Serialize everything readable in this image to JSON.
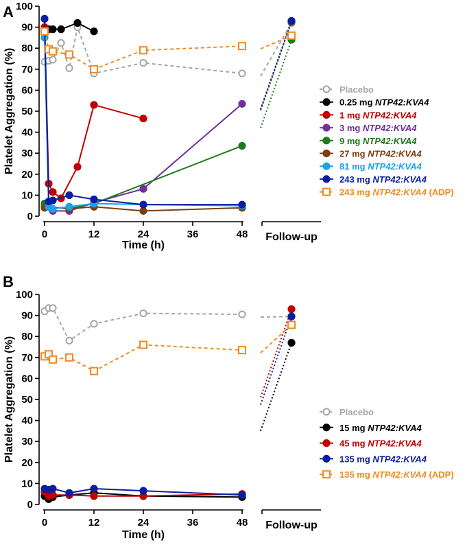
{
  "figure": {
    "followup_label": "Follow-up"
  },
  "chart_data": [
    {
      "type": "line",
      "panel": "A",
      "xlabel": "Time (h)",
      "ylabel": "Platelet Aggregation (%)",
      "xlim": [
        0,
        48
      ],
      "ylim": [
        0,
        100
      ],
      "xticks": [
        0,
        12,
        24,
        36,
        48
      ],
      "yticks": [
        0,
        10,
        20,
        30,
        40,
        50,
        60,
        70,
        80,
        90,
        100
      ],
      "legend_position": "right",
      "series": [
        {
          "key": "placebo",
          "name": "Placebo",
          "name_parts": [
            "Placebo"
          ],
          "color": "#a6a6a6",
          "dashed": true,
          "hollow": true,
          "marker": "circle",
          "x": [
            0,
            1,
            2,
            4,
            6,
            8,
            12,
            24,
            48
          ],
          "y": [
            73.5,
            74,
            74.5,
            82.5,
            70.5,
            90,
            68,
            73,
            68
          ],
          "followup": 92
        },
        {
          "key": "d025",
          "name": "0.25 mg NTP42:KVA4",
          "name_parts": [
            "0.25 mg ",
            "NTP42:KVA4"
          ],
          "color": "#000000",
          "dashed": false,
          "hollow": false,
          "marker": "circle",
          "x": [
            0,
            1,
            2,
            4,
            8,
            12
          ],
          "y": [
            89,
            89,
            89,
            89,
            92,
            88
          ],
          "followup": 92.5
        },
        {
          "key": "d1",
          "name": "1 mg NTP42:KVA4",
          "name_parts": [
            "1 mg ",
            "NTP42:KVA4"
          ],
          "color": "#c00000",
          "dashed": false,
          "hollow": false,
          "marker": "circle",
          "x": [
            0,
            1,
            2,
            4,
            8,
            12,
            24
          ],
          "y": [
            90,
            15.5,
            11.5,
            8.5,
            23.5,
            53,
            46.5
          ],
          "followup": null
        },
        {
          "key": "d3",
          "name": "3 mg NTP42:KVA4",
          "name_parts": [
            "3 mg ",
            "NTP42:KVA4"
          ],
          "color": "#7030a0",
          "dashed": false,
          "hollow": false,
          "marker": "circle",
          "x": [
            0,
            2,
            6,
            12,
            24,
            48
          ],
          "y": [
            5,
            2.5,
            2.5,
            6.5,
            13,
            53.5
          ],
          "followup": null
        },
        {
          "key": "d9",
          "name": "9 mg NTP42:KVA4",
          "name_parts": [
            "9 mg ",
            "NTP42:KVA4"
          ],
          "color": "#1e7a1e",
          "dashed": false,
          "hollow": false,
          "marker": "circle",
          "x": [
            0,
            1,
            6,
            12,
            48
          ],
          "y": [
            6,
            4.5,
            3.5,
            6,
            33.5
          ],
          "followup": 84
        },
        {
          "key": "d27",
          "name": "27 mg NTP42:KVA4",
          "name_parts": [
            "27 mg ",
            "NTP42:KVA4"
          ],
          "color": "#7b3f10",
          "dashed": false,
          "hollow": false,
          "marker": "circle",
          "x": [
            0,
            1,
            6,
            12,
            24,
            48
          ],
          "y": [
            4,
            4.5,
            3.5,
            4.5,
            2.5,
            4
          ],
          "followup": 92.5
        },
        {
          "key": "d81",
          "name": "81 mg NTP42:KVA4",
          "name_parts": [
            "81 mg ",
            "NTP42:KVA4"
          ],
          "color": "#1aa3e8",
          "dashed": false,
          "hollow": false,
          "marker": "circle",
          "x": [
            0,
            1,
            2,
            6,
            12,
            24,
            48
          ],
          "y": [
            85,
            4.5,
            3.5,
            4.5,
            6,
            5.5,
            5
          ],
          "followup": 93
        },
        {
          "key": "d243",
          "name": "243 mg NTP42:KVA4",
          "name_parts": [
            "243 mg ",
            "NTP42:KVA4"
          ],
          "color": "#0b1ea0",
          "dashed": false,
          "hollow": false,
          "marker": "circle",
          "x": [
            0,
            1,
            2,
            6,
            12,
            24,
            48
          ],
          "y": [
            94,
            7,
            7.5,
            10,
            8,
            5.5,
            5.5
          ],
          "followup": 93
        },
        {
          "key": "d243adp",
          "name": "243 mg NTP42:KVA4 (ADP)",
          "name_parts": [
            "243 mg ",
            "NTP42:KVA4",
            " (ADP)"
          ],
          "color": "#f5891f",
          "dashed": true,
          "hollow": true,
          "marker": "square",
          "x": [
            0,
            1,
            2,
            6,
            12,
            24,
            48
          ],
          "y": [
            88,
            79.5,
            78.5,
            77,
            70,
            79,
            81
          ],
          "followup": 86
        }
      ]
    },
    {
      "type": "line",
      "panel": "B",
      "xlabel": "Time (h)",
      "ylabel": "Platelet Aggregation (%)",
      "xlim": [
        0,
        48
      ],
      "ylim": [
        0,
        100
      ],
      "xticks": [
        0,
        12,
        24,
        36,
        48
      ],
      "yticks": [
        0,
        10,
        20,
        30,
        40,
        50,
        60,
        70,
        80,
        90,
        100
      ],
      "legend_position": "right",
      "series": [
        {
          "key": "placebo",
          "name": "Placebo",
          "name_parts": [
            "Placebo"
          ],
          "color": "#a6a6a6",
          "dashed": true,
          "hollow": true,
          "marker": "circle",
          "x": [
            0,
            1,
            2,
            6,
            12,
            24,
            48
          ],
          "y": [
            92,
            93.5,
            93.5,
            78,
            86,
            91,
            90.5
          ],
          "followup": 89.5
        },
        {
          "key": "d15",
          "name": "15 mg NTP42:KVA4",
          "name_parts": [
            "15 mg ",
            "NTP42:KVA4"
          ],
          "color": "#000000",
          "dashed": false,
          "hollow": false,
          "marker": "circle",
          "x": [
            0,
            1,
            2,
            6,
            12,
            24,
            48
          ],
          "y": [
            4,
            2.5,
            3.5,
            4.5,
            5.5,
            4,
            3.5
          ],
          "followup": 77
        },
        {
          "key": "d45",
          "name": "45 mg NTP42:KVA4",
          "name_parts": [
            "45 mg ",
            "NTP42:KVA4"
          ],
          "color": "#c00000",
          "dashed": false,
          "hollow": false,
          "marker": "circle",
          "x": [
            0,
            1,
            2,
            6,
            12,
            24,
            48
          ],
          "y": [
            6,
            4,
            4.5,
            4.5,
            4,
            4,
            5
          ],
          "followup": 93
        },
        {
          "key": "d135",
          "name": "135 mg NTP42:KVA4",
          "name_parts": [
            "135 mg ",
            "NTP42:KVA4"
          ],
          "color": "#0b1ea0",
          "dashed": false,
          "hollow": false,
          "marker": "circle",
          "x": [
            0,
            1,
            2,
            6,
            12,
            24,
            48
          ],
          "y": [
            7.5,
            7,
            7.5,
            5.5,
            7.5,
            6.5,
            4.5
          ],
          "followup": 89.5
        },
        {
          "key": "d135adp",
          "name": "135 mg NTP42:KVA4 (ADP)",
          "name_parts": [
            "135 mg ",
            "NTP42:KVA4",
            " (ADP)"
          ],
          "color": "#f5891f",
          "dashed": true,
          "hollow": true,
          "marker": "square",
          "x": [
            0,
            1,
            2,
            6,
            12,
            24,
            48
          ],
          "y": [
            70.5,
            71.5,
            69,
            70,
            63.5,
            76,
            73.5
          ],
          "followup": 85.5
        }
      ]
    }
  ]
}
